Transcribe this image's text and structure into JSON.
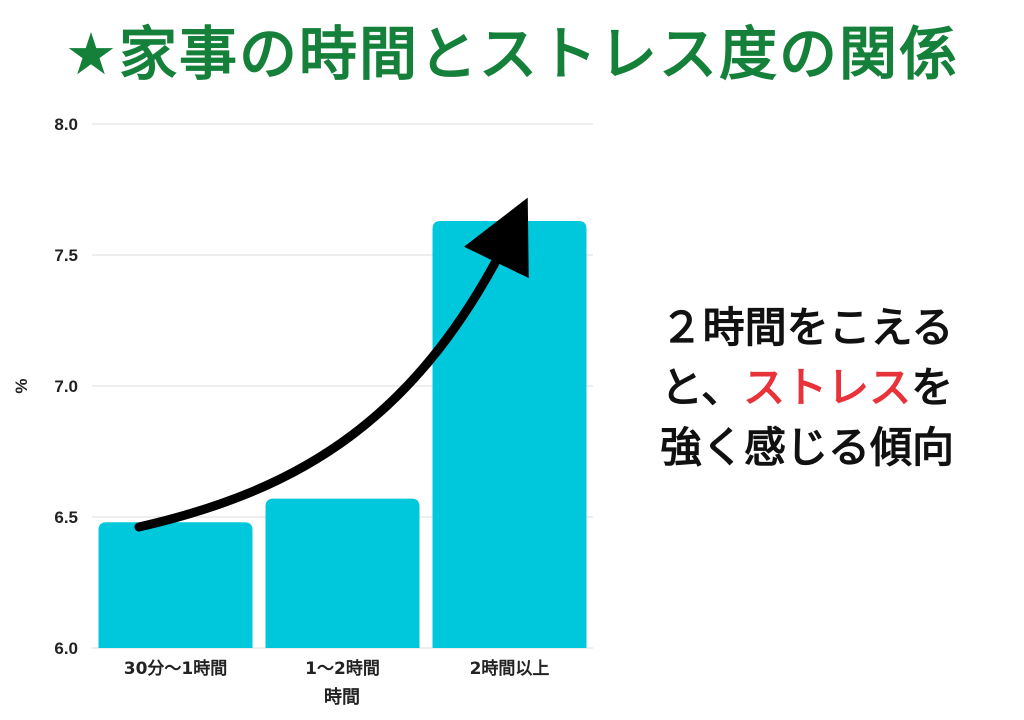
{
  "title": "★家事の時間とストレス度の関係",
  "annotation": {
    "line1": "２時間をこえる",
    "line2_before": "と、",
    "line2_highlight": "ストレス",
    "line2_after": "を",
    "line3": "強く感じる傾向"
  },
  "colors": {
    "title": "#14803a",
    "bar": "#00c8dc",
    "highlight": "#e8333a",
    "arrow": "#000000"
  },
  "chart_data": {
    "type": "bar",
    "categories": [
      "30分〜1時間",
      "1〜2時間",
      "2時間以上"
    ],
    "values": [
      6.48,
      6.57,
      7.63
    ],
    "xlabel": "時間",
    "ylabel": "%",
    "ylim": [
      6.0,
      8.0
    ],
    "yticks": [
      "6.0",
      "6.5",
      "7.0",
      "7.5",
      "8.0"
    ],
    "grid": true
  }
}
